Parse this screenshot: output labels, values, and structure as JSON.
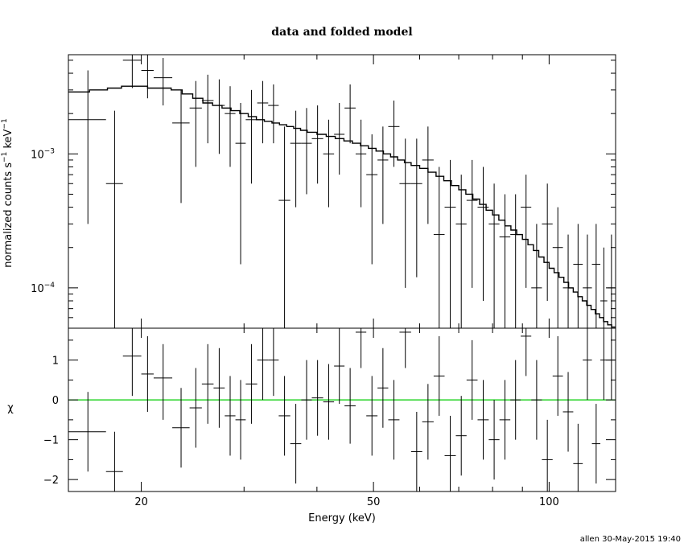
{
  "chart_data": {
    "type": "scatter",
    "title": "data and folded model",
    "xlabel": "Energy (keV)",
    "footer": "allen 30-May-2015 19:40",
    "x_scale": "log",
    "xlim": [
      15,
      130
    ],
    "x_ticks": [
      {
        "value": 20,
        "label": "20"
      },
      {
        "value": 50,
        "label": "50"
      },
      {
        "value": 100,
        "label": "100"
      }
    ],
    "top_panel": {
      "ylabel": "normalized counts s",
      "ylabel_sup1": "−1",
      "ylabel_mid": " keV",
      "ylabel_sup2": "−1",
      "y_scale": "log",
      "ylim": [
        5e-05,
        0.0055
      ],
      "y_ticks": [
        {
          "value": 0.001,
          "base": "10",
          "exp": "−3"
        },
        {
          "value": 0.0001,
          "base": "10",
          "exp": "−4"
        }
      ],
      "model_steps": [
        [
          15.0,
          0.0029
        ],
        [
          16.3,
          0.003
        ],
        [
          17.5,
          0.0031
        ],
        [
          18.5,
          0.0032
        ],
        [
          19.5,
          0.0032
        ],
        [
          20.5,
          0.0031
        ],
        [
          21.5,
          0.0031
        ],
        [
          22.5,
          0.003
        ],
        [
          23.5,
          0.0028
        ],
        [
          24.5,
          0.0026
        ],
        [
          25.5,
          0.0024
        ],
        [
          26.5,
          0.0023
        ],
        [
          27.5,
          0.0022
        ],
        [
          28.5,
          0.0021
        ],
        [
          29.5,
          0.002
        ],
        [
          30.5,
          0.0019
        ],
        [
          31.5,
          0.0018
        ],
        [
          32.5,
          0.00175
        ],
        [
          33.5,
          0.0017
        ],
        [
          34.5,
          0.00165
        ],
        [
          35.5,
          0.0016
        ],
        [
          36.5,
          0.00155
        ],
        [
          37.5,
          0.0015
        ],
        [
          38.5,
          0.00145
        ],
        [
          40.0,
          0.0014
        ],
        [
          41.5,
          0.00135
        ],
        [
          43.0,
          0.0013
        ],
        [
          44.5,
          0.00125
        ],
        [
          46.0,
          0.0012
        ],
        [
          47.5,
          0.00115
        ],
        [
          49.0,
          0.0011
        ],
        [
          50.5,
          0.00105
        ],
        [
          52.0,
          0.001
        ],
        [
          53.5,
          0.00095
        ],
        [
          55.0,
          0.0009
        ],
        [
          56.5,
          0.00086
        ],
        [
          58.0,
          0.00082
        ],
        [
          60.0,
          0.00078
        ],
        [
          62.0,
          0.00073
        ],
        [
          64.0,
          0.00068
        ],
        [
          66.0,
          0.00063
        ],
        [
          68.0,
          0.00058
        ],
        [
          70.0,
          0.00054
        ],
        [
          72.0,
          0.0005
        ],
        [
          74.0,
          0.00046
        ],
        [
          76.0,
          0.00042
        ],
        [
          78.0,
          0.00038
        ],
        [
          80.0,
          0.00035
        ],
        [
          82.0,
          0.00032
        ],
        [
          84.0,
          0.00029
        ],
        [
          86.0,
          0.00027
        ],
        [
          88.0,
          0.00025
        ],
        [
          90.0,
          0.00023
        ],
        [
          92.0,
          0.00021
        ],
        [
          94.0,
          0.00019
        ],
        [
          96.0,
          0.00017
        ],
        [
          98.0,
          0.000155
        ],
        [
          100.0,
          0.00014
        ],
        [
          102.0,
          0.00013
        ],
        [
          104.0,
          0.00012
        ],
        [
          106.0,
          0.00011
        ],
        [
          108.0,
          0.0001
        ],
        [
          110.0,
          9.3e-05
        ],
        [
          112.0,
          8.6e-05
        ],
        [
          114.0,
          8e-05
        ],
        [
          116.0,
          7.4e-05
        ],
        [
          118.0,
          6.9e-05
        ],
        [
          120.0,
          6.4e-05
        ],
        [
          122.0,
          6e-05
        ],
        [
          124.0,
          5.6e-05
        ],
        [
          126.0,
          5.3e-05
        ],
        [
          128.0,
          5.1e-05
        ],
        [
          130.0,
          5.1e-05
        ]
      ],
      "points": [
        {
          "x": 16.2,
          "xlo": 15.0,
          "xhi": 17.4,
          "y": 0.0018,
          "ylo": 0.0003,
          "yhi": 0.0042
        },
        {
          "x": 18.0,
          "xlo": 17.4,
          "xhi": 18.6,
          "y": 0.0006,
          "ylo": 5e-05,
          "yhi": 0.0021
        },
        {
          "x": 19.3,
          "xlo": 18.6,
          "xhi": 20.0,
          "y": 0.005,
          "ylo": 0.0031,
          "yhi": 0.007
        },
        {
          "x": 20.5,
          "xlo": 20.0,
          "xhi": 21.0,
          "y": 0.0042,
          "ylo": 0.0026,
          "yhi": 0.006
        },
        {
          "x": 21.8,
          "xlo": 21.0,
          "xhi": 22.6,
          "y": 0.0037,
          "ylo": 0.0023,
          "yhi": 0.0052
        },
        {
          "x": 23.4,
          "xlo": 22.6,
          "xhi": 24.2,
          "y": 0.0017,
          "ylo": 0.00043,
          "yhi": 0.003
        },
        {
          "x": 24.8,
          "xlo": 24.2,
          "xhi": 25.4,
          "y": 0.0022,
          "ylo": 0.0008,
          "yhi": 0.0035
        },
        {
          "x": 26.0,
          "xlo": 25.4,
          "xhi": 26.6,
          "y": 0.0025,
          "ylo": 0.0012,
          "yhi": 0.0039
        },
        {
          "x": 27.2,
          "xlo": 26.6,
          "xhi": 27.8,
          "y": 0.0023,
          "ylo": 0.001,
          "yhi": 0.0036
        },
        {
          "x": 28.4,
          "xlo": 27.8,
          "xhi": 29.0,
          "y": 0.002,
          "ylo": 0.0008,
          "yhi": 0.0032
        },
        {
          "x": 29.6,
          "xlo": 29.0,
          "xhi": 30.2,
          "y": 0.0012,
          "ylo": 0.00015,
          "yhi": 0.0024
        },
        {
          "x": 30.9,
          "xlo": 30.2,
          "xhi": 31.6,
          "y": 0.0018,
          "ylo": 0.0006,
          "yhi": 0.003
        },
        {
          "x": 32.3,
          "xlo": 31.6,
          "xhi": 33.0,
          "y": 0.0024,
          "ylo": 0.0012,
          "yhi": 0.0035
        },
        {
          "x": 33.7,
          "xlo": 33.0,
          "xhi": 34.4,
          "y": 0.0023,
          "ylo": 0.0012,
          "yhi": 0.0033
        },
        {
          "x": 35.2,
          "xlo": 34.4,
          "xhi": 36.0,
          "y": 0.00045,
          "ylo": 5e-05,
          "yhi": 0.0016
        },
        {
          "x": 36.8,
          "xlo": 36.0,
          "xhi": 37.6,
          "y": 0.0012,
          "ylo": 0.0004,
          "yhi": 0.0021
        },
        {
          "x": 38.4,
          "xlo": 37.6,
          "xhi": 39.2,
          "y": 0.0012,
          "ylo": 0.0005,
          "yhi": 0.0022
        },
        {
          "x": 40.1,
          "xlo": 39.2,
          "xhi": 41.0,
          "y": 0.0013,
          "ylo": 0.0006,
          "yhi": 0.0023
        },
        {
          "x": 41.9,
          "xlo": 41.0,
          "xhi": 42.8,
          "y": 0.001,
          "ylo": 0.0004,
          "yhi": 0.0018
        },
        {
          "x": 43.7,
          "xlo": 42.8,
          "xhi": 44.6,
          "y": 0.0014,
          "ylo": 0.0007,
          "yhi": 0.0024
        },
        {
          "x": 45.6,
          "xlo": 44.6,
          "xhi": 46.6,
          "y": 0.0022,
          "ylo": 0.0012,
          "yhi": 0.0033
        },
        {
          "x": 47.6,
          "xlo": 46.6,
          "xhi": 48.6,
          "y": 0.001,
          "ylo": 0.0004,
          "yhi": 0.0018
        },
        {
          "x": 49.7,
          "xlo": 48.6,
          "xhi": 50.8,
          "y": 0.0007,
          "ylo": 0.00015,
          "yhi": 0.0014
        },
        {
          "x": 51.9,
          "xlo": 50.8,
          "xhi": 53.0,
          "y": 0.0009,
          "ylo": 0.0003,
          "yhi": 0.0016
        },
        {
          "x": 54.2,
          "xlo": 53.0,
          "xhi": 55.4,
          "y": 0.0016,
          "ylo": 0.0008,
          "yhi": 0.0025
        },
        {
          "x": 56.7,
          "xlo": 55.4,
          "xhi": 58.0,
          "y": 0.0006,
          "ylo": 0.0001,
          "yhi": 0.0013
        },
        {
          "x": 59.3,
          "xlo": 58.0,
          "xhi": 60.6,
          "y": 0.0006,
          "ylo": 0.00012,
          "yhi": 0.0013
        },
        {
          "x": 62.0,
          "xlo": 60.6,
          "xhi": 63.4,
          "y": 0.0009,
          "ylo": 0.0003,
          "yhi": 0.0016
        },
        {
          "x": 64.8,
          "xlo": 63.4,
          "xhi": 66.2,
          "y": 0.00025,
          "ylo": 5e-05,
          "yhi": 0.0008
        },
        {
          "x": 67.7,
          "xlo": 66.2,
          "xhi": 69.2,
          "y": 0.0004,
          "ylo": 5e-05,
          "yhi": 0.0009
        },
        {
          "x": 70.7,
          "xlo": 69.2,
          "xhi": 72.2,
          "y": 0.0003,
          "ylo": 5e-05,
          "yhi": 0.0007
        },
        {
          "x": 73.8,
          "xlo": 72.2,
          "xhi": 75.4,
          "y": 0.00045,
          "ylo": 0.0001,
          "yhi": 0.0009
        },
        {
          "x": 77.1,
          "xlo": 75.4,
          "xhi": 78.8,
          "y": 0.0004,
          "ylo": 8e-05,
          "yhi": 0.0008
        },
        {
          "x": 80.5,
          "xlo": 78.8,
          "xhi": 82.2,
          "y": 0.0003,
          "ylo": 5e-05,
          "yhi": 0.0006
        },
        {
          "x": 84.0,
          "xlo": 82.2,
          "xhi": 85.8,
          "y": 0.00024,
          "ylo": 5e-05,
          "yhi": 0.0005
        },
        {
          "x": 87.6,
          "xlo": 85.8,
          "xhi": 89.4,
          "y": 0.00025,
          "ylo": 5e-05,
          "yhi": 0.0005
        },
        {
          "x": 91.3,
          "xlo": 89.4,
          "xhi": 93.2,
          "y": 0.0004,
          "ylo": 0.0001,
          "yhi": 0.0007
        },
        {
          "x": 95.2,
          "xlo": 93.2,
          "xhi": 97.2,
          "y": 0.0001,
          "ylo": 5e-05,
          "yhi": 0.0003
        },
        {
          "x": 99.3,
          "xlo": 97.2,
          "xhi": 101.4,
          "y": 0.0003,
          "ylo": 8e-05,
          "yhi": 0.0006
        },
        {
          "x": 103.5,
          "xlo": 101.4,
          "xhi": 105.6,
          "y": 0.0002,
          "ylo": 5e-05,
          "yhi": 0.0004
        },
        {
          "x": 107.8,
          "xlo": 105.6,
          "xhi": 110.0,
          "y": 0.0001,
          "ylo": 5e-05,
          "yhi": 0.00025
        },
        {
          "x": 112.1,
          "xlo": 110.0,
          "xhi": 114.2,
          "y": 0.00015,
          "ylo": 5e-05,
          "yhi": 0.0003
        },
        {
          "x": 116.3,
          "xlo": 114.2,
          "xhi": 118.4,
          "y": 0.0001,
          "ylo": 5e-05,
          "yhi": 0.00025
        },
        {
          "x": 120.4,
          "xlo": 118.4,
          "xhi": 122.4,
          "y": 0.00015,
          "ylo": 5e-05,
          "yhi": 0.0003
        },
        {
          "x": 124.1,
          "xlo": 122.4,
          "xhi": 125.8,
          "y": 8e-05,
          "ylo": 5e-05,
          "yhi": 0.0002
        },
        {
          "x": 127.9,
          "xlo": 125.8,
          "xhi": 130.0,
          "y": 0.0001,
          "ylo": 5e-05,
          "yhi": 0.00025
        }
      ]
    },
    "bottom_panel": {
      "ylabel": "χ",
      "ylim": [
        -2.3,
        1.8
      ],
      "y_ticks": [
        {
          "value": 1,
          "label": "1"
        },
        {
          "value": 0,
          "label": "0"
        },
        {
          "value": -1,
          "label": "−1"
        },
        {
          "value": -2,
          "label": "−2"
        }
      ],
      "zero_line_color": "#00cc00",
      "points": [
        {
          "x": 16.2,
          "xlo": 15.0,
          "xhi": 17.4,
          "y": -0.8,
          "ylo": -1.8,
          "yhi": 0.2
        },
        {
          "x": 18.0,
          "xlo": 17.4,
          "xhi": 18.6,
          "y": -1.8,
          "ylo": -2.3,
          "yhi": -0.8
        },
        {
          "x": 19.3,
          "xlo": 18.6,
          "xhi": 20.0,
          "y": 1.1,
          "ylo": 0.1,
          "yhi": 1.8
        },
        {
          "x": 20.5,
          "xlo": 20.0,
          "xhi": 21.0,
          "y": 0.65,
          "ylo": -0.3,
          "yhi": 1.6
        },
        {
          "x": 21.8,
          "xlo": 21.0,
          "xhi": 22.6,
          "y": 0.55,
          "ylo": -0.5,
          "yhi": 1.4
        },
        {
          "x": 23.4,
          "xlo": 22.6,
          "xhi": 24.2,
          "y": -0.7,
          "ylo": -1.7,
          "yhi": 0.3
        },
        {
          "x": 24.8,
          "xlo": 24.2,
          "xhi": 25.4,
          "y": -0.2,
          "ylo": -1.2,
          "yhi": 0.8
        },
        {
          "x": 26.0,
          "xlo": 25.4,
          "xhi": 26.6,
          "y": 0.4,
          "ylo": -0.6,
          "yhi": 1.4
        },
        {
          "x": 27.2,
          "xlo": 26.6,
          "xhi": 27.8,
          "y": 0.3,
          "ylo": -0.7,
          "yhi": 1.3
        },
        {
          "x": 28.4,
          "xlo": 27.8,
          "xhi": 29.0,
          "y": -0.4,
          "ylo": -1.4,
          "yhi": 0.6
        },
        {
          "x": 29.6,
          "xlo": 29.0,
          "xhi": 30.2,
          "y": -0.5,
          "ylo": -1.5,
          "yhi": 0.5
        },
        {
          "x": 30.9,
          "xlo": 30.2,
          "xhi": 31.6,
          "y": 0.4,
          "ylo": -0.6,
          "yhi": 1.4
        },
        {
          "x": 32.3,
          "xlo": 31.6,
          "xhi": 33.0,
          "y": 1.0,
          "ylo": 0.0,
          "yhi": 1.8
        },
        {
          "x": 33.7,
          "xlo": 33.0,
          "xhi": 34.4,
          "y": 1.0,
          "ylo": 0.1,
          "yhi": 1.8
        },
        {
          "x": 35.2,
          "xlo": 34.4,
          "xhi": 36.0,
          "y": -0.4,
          "ylo": -1.4,
          "yhi": 0.6
        },
        {
          "x": 36.8,
          "xlo": 36.0,
          "xhi": 37.6,
          "y": -1.1,
          "ylo": -2.1,
          "yhi": -0.1
        },
        {
          "x": 38.4,
          "xlo": 37.6,
          "xhi": 39.2,
          "y": 0.0,
          "ylo": -1.0,
          "yhi": 1.0
        },
        {
          "x": 40.1,
          "xlo": 39.2,
          "xhi": 41.0,
          "y": 0.05,
          "ylo": -0.9,
          "yhi": 1.0
        },
        {
          "x": 41.9,
          "xlo": 41.0,
          "xhi": 42.8,
          "y": -0.05,
          "ylo": -1.0,
          "yhi": 0.9
        },
        {
          "x": 43.7,
          "xlo": 42.8,
          "xhi": 44.6,
          "y": 0.85,
          "ylo": -0.1,
          "yhi": 1.8
        },
        {
          "x": 45.6,
          "xlo": 44.6,
          "xhi": 46.6,
          "y": -0.15,
          "ylo": -1.1,
          "yhi": 0.8
        },
        {
          "x": 47.6,
          "xlo": 46.6,
          "xhi": 48.6,
          "y": 1.7,
          "ylo": 0.8,
          "yhi": 1.8
        },
        {
          "x": 49.7,
          "xlo": 48.6,
          "xhi": 50.8,
          "y": -0.4,
          "ylo": -1.4,
          "yhi": 0.6
        },
        {
          "x": 51.9,
          "xlo": 50.8,
          "xhi": 53.0,
          "y": 0.3,
          "ylo": -0.7,
          "yhi": 1.3
        },
        {
          "x": 54.2,
          "xlo": 53.0,
          "xhi": 55.4,
          "y": -0.5,
          "ylo": -1.5,
          "yhi": 0.5
        },
        {
          "x": 56.7,
          "xlo": 55.4,
          "xhi": 58.0,
          "y": 1.7,
          "ylo": 0.8,
          "yhi": 1.8
        },
        {
          "x": 59.3,
          "xlo": 58.0,
          "xhi": 60.6,
          "y": -1.3,
          "ylo": -2.3,
          "yhi": -0.3
        },
        {
          "x": 62.0,
          "xlo": 60.6,
          "xhi": 63.4,
          "y": -0.55,
          "ylo": -1.5,
          "yhi": 0.4
        },
        {
          "x": 64.8,
          "xlo": 63.4,
          "xhi": 66.2,
          "y": 0.6,
          "ylo": -0.4,
          "yhi": 1.6
        },
        {
          "x": 67.7,
          "xlo": 66.2,
          "xhi": 69.2,
          "y": -1.4,
          "ylo": -2.3,
          "yhi": -0.4
        },
        {
          "x": 70.7,
          "xlo": 69.2,
          "xhi": 72.2,
          "y": -0.9,
          "ylo": -1.9,
          "yhi": 0.1
        },
        {
          "x": 73.8,
          "xlo": 72.2,
          "xhi": 75.4,
          "y": 0.5,
          "ylo": -0.5,
          "yhi": 1.5
        },
        {
          "x": 77.1,
          "xlo": 75.4,
          "xhi": 78.8,
          "y": -0.5,
          "ylo": -1.5,
          "yhi": 0.5
        },
        {
          "x": 80.5,
          "xlo": 78.8,
          "xhi": 82.2,
          "y": -1.0,
          "ylo": -2.0,
          "yhi": 0.0
        },
        {
          "x": 84.0,
          "xlo": 82.2,
          "xhi": 85.8,
          "y": -0.5,
          "ylo": -1.5,
          "yhi": 0.5
        },
        {
          "x": 87.6,
          "xlo": 85.8,
          "xhi": 89.4,
          "y": 0.0,
          "ylo": -1.0,
          "yhi": 1.0
        },
        {
          "x": 91.3,
          "xlo": 89.4,
          "xhi": 93.2,
          "y": 1.6,
          "ylo": 0.6,
          "yhi": 1.8
        },
        {
          "x": 95.2,
          "xlo": 93.2,
          "xhi": 97.2,
          "y": 0.0,
          "ylo": -1.0,
          "yhi": 1.0
        },
        {
          "x": 99.3,
          "xlo": 97.2,
          "xhi": 101.4,
          "y": -1.5,
          "ylo": -2.3,
          "yhi": -0.5
        },
        {
          "x": 103.5,
          "xlo": 101.4,
          "xhi": 105.6,
          "y": 0.6,
          "ylo": -0.4,
          "yhi": 1.6
        },
        {
          "x": 107.8,
          "xlo": 105.6,
          "xhi": 110.0,
          "y": -0.3,
          "ylo": -1.3,
          "yhi": 0.7
        },
        {
          "x": 112.1,
          "xlo": 110.0,
          "xhi": 114.2,
          "y": -1.6,
          "ylo": -2.3,
          "yhi": -0.6
        },
        {
          "x": 116.3,
          "xlo": 114.2,
          "xhi": 118.4,
          "y": 1.0,
          "ylo": 0.0,
          "yhi": 1.8
        },
        {
          "x": 120.4,
          "xlo": 118.4,
          "xhi": 122.4,
          "y": -1.1,
          "ylo": -2.1,
          "yhi": -0.1
        },
        {
          "x": 124.1,
          "xlo": 122.4,
          "xhi": 125.8,
          "y": 1.0,
          "ylo": 0.0,
          "yhi": 1.8
        },
        {
          "x": 127.9,
          "xlo": 125.8,
          "xhi": 130.0,
          "y": 1.0,
          "ylo": 0.0,
          "yhi": 1.8
        }
      ]
    }
  }
}
